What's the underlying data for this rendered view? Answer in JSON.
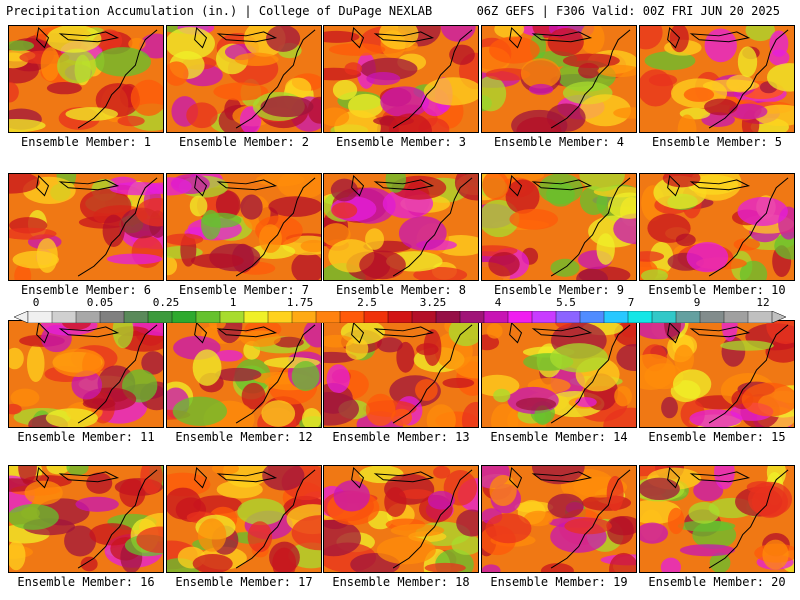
{
  "header": {
    "title": "Precipitation Accumulation (in.) | College of DuPage NEXLAB",
    "run_info": "06Z GEFS | F306 Valid: 00Z FRI JUN 20 2025"
  },
  "panels": [
    {
      "label": "Ensemble Member: 1"
    },
    {
      "label": "Ensemble Member: 2"
    },
    {
      "label": "Ensemble Member: 3"
    },
    {
      "label": "Ensemble Member: 4"
    },
    {
      "label": "Ensemble Member: 5"
    },
    {
      "label": "Ensemble Member: 6"
    },
    {
      "label": "Ensemble Member: 7"
    },
    {
      "label": "Ensemble Member: 8"
    },
    {
      "label": "Ensemble Member: 9"
    },
    {
      "label": "Ensemble Member: 10"
    },
    {
      "label": "Ensemble Member: 11"
    },
    {
      "label": "Ensemble Member: 12"
    },
    {
      "label": "Ensemble Member: 13"
    },
    {
      "label": "Ensemble Member: 14"
    },
    {
      "label": "Ensemble Member: 15"
    },
    {
      "label": "Ensemble Member: 16"
    },
    {
      "label": "Ensemble Member: 17"
    },
    {
      "label": "Ensemble Member: 18"
    },
    {
      "label": "Ensemble Member: 19"
    },
    {
      "label": "Ensemble Member: 20"
    }
  ],
  "colorbar": {
    "tick_labels": [
      "0",
      "0.05",
      "0.25",
      "1",
      "1.75",
      "2.5",
      "3.25",
      "4",
      "5.5",
      "7",
      "9",
      "12"
    ],
    "colors": [
      "#f0f0f0",
      "#d0d0d0",
      "#a8a8a8",
      "#808080",
      "#5a8a5a",
      "#3c9a3c",
      "#2eaa2e",
      "#66c22e",
      "#a8dc2e",
      "#f0f028",
      "#ffd21e",
      "#ffaa14",
      "#ff820f",
      "#ff5a0a",
      "#f0320a",
      "#d21414",
      "#b40f28",
      "#960f46",
      "#a01478",
      "#c814b4",
      "#f01ef0",
      "#c83cff",
      "#8c64ff",
      "#508cff",
      "#28c8ff",
      "#14e6e6",
      "#32c8c8",
      "#64a0a0",
      "#828c8c",
      "#a0a0a0",
      "#c0c0c0"
    ]
  }
}
